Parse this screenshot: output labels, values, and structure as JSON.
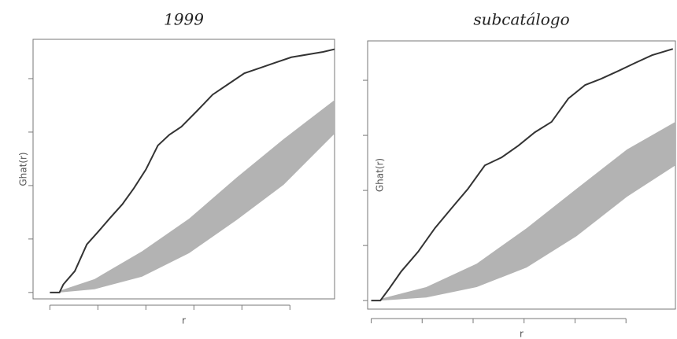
{
  "chart_data": [
    {
      "type": "line",
      "title": "1999",
      "y_label": "Ghat(r)",
      "x_label": "r",
      "xlim": [
        -0.35,
        5.93
      ],
      "ylim": [
        -0.024,
        0.947
      ],
      "xticks": [
        0,
        1,
        2,
        3,
        4,
        5
      ],
      "yticks": [
        0,
        0.2,
        0.4,
        0.6,
        0.8
      ],
      "series": [
        {
          "color": "#333333",
          "x": [
            0,
            0.2,
            0.28,
            0.52,
            0.77,
            1.02,
            1.26,
            1.51,
            1.75,
            2.0,
            2.25,
            2.49,
            2.74,
            3.07,
            3.39,
            3.72,
            4.05,
            4.38,
            4.7,
            5.03,
            5.36,
            5.69,
            5.93
          ],
          "values": [
            0,
            0,
            0.03,
            0.08,
            0.18,
            0.23,
            0.28,
            0.33,
            0.39,
            0.46,
            0.55,
            0.59,
            0.62,
            0.68,
            0.74,
            0.78,
            0.82,
            0.84,
            0.86,
            0.88,
            0.89,
            0.9,
            0.91
          ]
        }
      ],
      "band": {
        "color": "#b3b3b3",
        "x": [
          0.2,
          0.93,
          1.92,
          2.9,
          3.89,
          4.87,
          5.93
        ],
        "upper": [
          0.006,
          0.05,
          0.154,
          0.276,
          0.43,
          0.574,
          0.72
        ],
        "lower": [
          0,
          0.012,
          0.059,
          0.147,
          0.271,
          0.403,
          0.594
        ]
      }
    },
    {
      "type": "line",
      "title": "subcatálogo",
      "y_label": "Ghat(r)",
      "x_label": "r",
      "xlim": [
        -0.07,
        5.97
      ],
      "ylim": [
        -0.031,
        0.943
      ],
      "xticks": [
        0,
        1,
        2,
        3,
        4,
        5
      ],
      "yticks": [
        0,
        0.2,
        0.4,
        0.6,
        0.8
      ],
      "series": [
        {
          "color": "#333333",
          "x": [
            0,
            0.18,
            0.34,
            0.59,
            0.92,
            1.25,
            1.57,
            1.9,
            2.23,
            2.56,
            2.89,
            3.21,
            3.54,
            3.87,
            4.2,
            4.52,
            4.85,
            5.18,
            5.51,
            5.92
          ],
          "values": [
            0,
            0,
            0.04,
            0.106,
            0.177,
            0.263,
            0.334,
            0.406,
            0.491,
            0.52,
            0.563,
            0.611,
            0.649,
            0.734,
            0.783,
            0.806,
            0.834,
            0.863,
            0.891,
            0.914
          ]
        }
      ],
      "band": {
        "color": "#b3b3b3",
        "x": [
          0.18,
          1.08,
          2.07,
          3.05,
          4.03,
          5.02,
          5.97
        ],
        "upper": [
          0.006,
          0.049,
          0.134,
          0.263,
          0.406,
          0.549,
          0.649
        ],
        "lower": [
          0,
          0.011,
          0.049,
          0.12,
          0.234,
          0.377,
          0.491
        ]
      }
    }
  ]
}
